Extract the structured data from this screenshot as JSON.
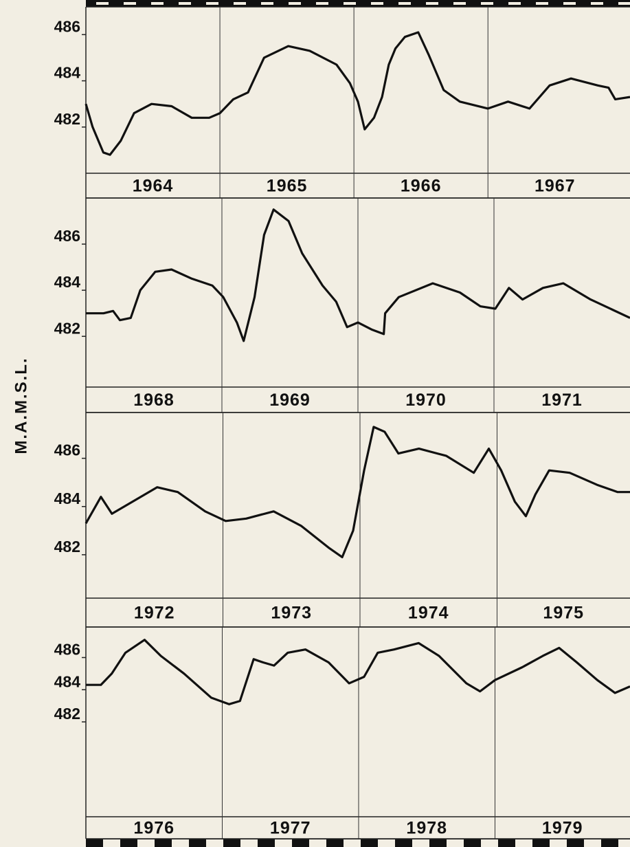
{
  "y_axis_label": "M.A.M.S.L.",
  "chart_data": [
    {
      "type": "line",
      "categories": [
        "1964",
        "1965",
        "1966",
        "1967"
      ],
      "x": [
        1964.0,
        1964.05,
        1964.13,
        1964.18,
        1964.26,
        1964.36,
        1964.49,
        1964.64,
        1964.79,
        1964.92,
        1965.0,
        1965.1,
        1965.21,
        1965.33,
        1965.51,
        1965.67,
        1965.87,
        1965.97,
        1966.03,
        1966.08,
        1966.15,
        1966.21,
        1966.26,
        1966.31,
        1966.38,
        1966.48,
        1966.56,
        1966.67,
        1966.79,
        1967.0,
        1967.15,
        1967.31,
        1967.46,
        1967.62,
        1967.82,
        1967.9,
        1967.95,
        1968.06
      ],
      "values": [
        483.0,
        482.0,
        480.9,
        480.8,
        481.4,
        482.6,
        483.0,
        482.9,
        482.4,
        482.4,
        482.6,
        483.2,
        483.5,
        485.0,
        485.5,
        485.3,
        484.7,
        483.9,
        483.1,
        481.9,
        482.4,
        483.3,
        484.7,
        485.4,
        485.9,
        486.1,
        485.1,
        483.6,
        483.1,
        482.8,
        483.1,
        482.8,
        483.8,
        484.1,
        483.8,
        483.7,
        483.2,
        483.3
      ],
      "color": "#111111",
      "xlim": [
        1964,
        1968.06
      ],
      "xticks": [
        1965,
        1966,
        1967
      ],
      "ylim": [
        480.0,
        487.2
      ],
      "yticks": [
        482,
        484,
        486
      ]
    },
    {
      "type": "line",
      "categories": [
        "1968",
        "1969",
        "1970",
        "1971"
      ],
      "x": [
        1968.0,
        1968.13,
        1968.2,
        1968.25,
        1968.33,
        1968.4,
        1968.51,
        1968.63,
        1968.78,
        1968.93,
        1969.01,
        1969.11,
        1969.16,
        1969.24,
        1969.31,
        1969.38,
        1969.49,
        1969.59,
        1969.74,
        1969.84,
        1969.92,
        1970.0,
        1970.1,
        1970.19,
        1970.2,
        1970.3,
        1970.55,
        1970.75,
        1970.9,
        1971.01,
        1971.11,
        1971.21,
        1971.36,
        1971.51,
        1971.71,
        1972.0
      ],
      "values": [
        483.0,
        483.0,
        483.1,
        482.7,
        482.8,
        484.0,
        484.8,
        484.9,
        484.5,
        484.2,
        483.7,
        482.6,
        481.8,
        483.7,
        486.4,
        487.5,
        487.0,
        485.6,
        484.2,
        483.5,
        482.4,
        482.6,
        482.3,
        482.1,
        483.0,
        483.7,
        484.3,
        483.9,
        483.3,
        483.2,
        484.1,
        483.6,
        484.1,
        484.3,
        483.6,
        482.8
      ],
      "color": "#111111",
      "xlim": [
        1968,
        1972
      ],
      "xticks": [
        1969,
        1970,
        1971
      ],
      "ylim": [
        479.8,
        488.0
      ],
      "yticks": [
        482,
        484,
        486
      ]
    },
    {
      "type": "line",
      "categories": [
        "1972",
        "1973",
        "1974",
        "1975"
      ],
      "x": [
        1972.0,
        1972.11,
        1972.19,
        1972.37,
        1972.52,
        1972.67,
        1972.87,
        1973.02,
        1973.17,
        1973.37,
        1973.57,
        1973.77,
        1973.87,
        1973.95,
        1974.03,
        1974.1,
        1974.18,
        1974.28,
        1974.43,
        1974.63,
        1974.83,
        1974.94,
        1975.03,
        1975.13,
        1975.21,
        1975.28,
        1975.38,
        1975.53,
        1975.73,
        1975.88,
        1975.97
      ],
      "values": [
        483.3,
        484.4,
        483.7,
        484.3,
        484.8,
        484.6,
        483.8,
        483.4,
        483.5,
        483.8,
        483.2,
        482.3,
        481.9,
        483.0,
        485.5,
        487.3,
        487.1,
        486.2,
        486.4,
        486.1,
        485.4,
        486.4,
        485.5,
        484.2,
        483.6,
        484.5,
        485.5,
        485.4,
        484.9,
        484.6,
        484.6
      ],
      "color": "#111111",
      "xlim": [
        1972,
        1975.97
      ],
      "xticks": [
        1973,
        1974,
        1975
      ],
      "ylim": [
        480.2,
        487.9
      ],
      "yticks": [
        482,
        484,
        486
      ]
    },
    {
      "type": "line",
      "categories": [
        "1976",
        "1977",
        "1978",
        "1979"
      ],
      "x": [
        1976.0,
        1976.11,
        1976.19,
        1976.29,
        1976.43,
        1976.55,
        1976.72,
        1976.92,
        1977.05,
        1977.13,
        1977.23,
        1977.3,
        1977.38,
        1977.48,
        1977.61,
        1977.78,
        1977.93,
        1978.04,
        1978.14,
        1978.26,
        1978.44,
        1978.59,
        1978.79,
        1978.89,
        1979.0,
        1979.2,
        1979.35,
        1979.47,
        1979.6,
        1979.75,
        1979.88,
        1979.99
      ],
      "values": [
        484.3,
        484.3,
        485.0,
        486.3,
        487.1,
        486.1,
        485.0,
        483.5,
        483.1,
        483.3,
        485.9,
        485.7,
        485.5,
        486.3,
        486.5,
        485.7,
        484.4,
        484.8,
        486.3,
        486.5,
        486.9,
        486.1,
        484.4,
        483.9,
        484.6,
        485.4,
        486.1,
        486.6,
        485.7,
        484.6,
        483.8,
        484.2
      ],
      "color": "#111111",
      "xlim": [
        1976,
        1979.99
      ],
      "xticks": [
        1977,
        1978,
        1979
      ],
      "ylim": [
        476.1,
        487.9
      ],
      "yticks": [
        482,
        484,
        486
      ]
    }
  ]
}
